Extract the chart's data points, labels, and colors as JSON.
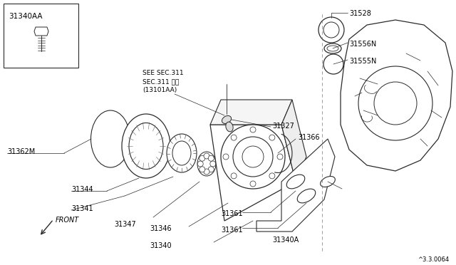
{
  "background_color": "#ffffff",
  "line_color": "#2a2a2a",
  "figure_number": "^3.3.0064",
  "note_lines": [
    "SEE SEC.311",
    "SEC.311 参照",
    "(13101AA)"
  ],
  "parts": {
    "box_label": "31340AA",
    "labels_left": [
      "31362M",
      "31344",
      "31341",
      "31347",
      "31346",
      "31340"
    ],
    "labels_right": [
      "31366",
      "31327",
      "31361",
      "31361",
      "31340A"
    ],
    "labels_top": [
      "31528",
      "31556N",
      "31555N"
    ]
  }
}
